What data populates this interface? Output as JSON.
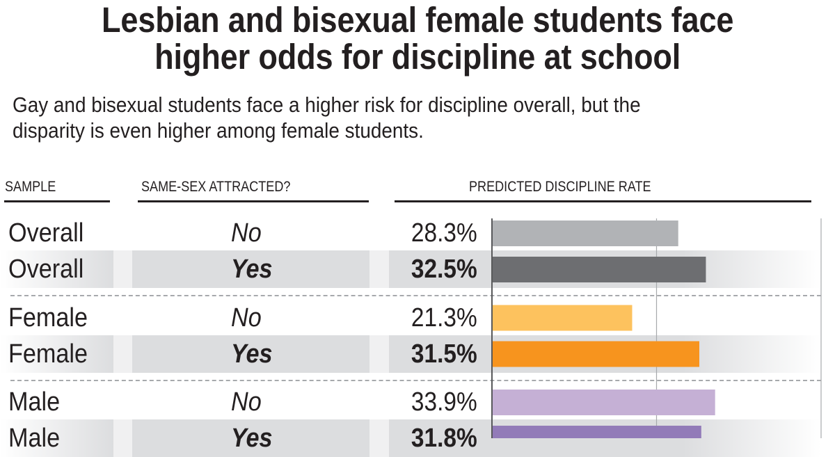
{
  "chart_data": {
    "type": "bar",
    "orientation": "horizontal",
    "title": "Lesbian and bisexual female students face higher odds for discipline at school",
    "title_lines": [
      "Lesbian and bisexual female students face",
      "higher odds for discipline at school"
    ],
    "subtitle_lines": [
      "Gay and bisexual students face a higher risk for discipline overall, but the",
      "disparity is even higher among female students."
    ],
    "columns": {
      "sample": "SAMPLE",
      "attracted": "SAME-SEX ATTRACTED?",
      "rate": "PREDICTED DISCIPLINE RATE"
    },
    "xlim": [
      0,
      50
    ],
    "gridlines": [
      25,
      50
    ],
    "unit": "%",
    "rows": [
      {
        "sample": "Overall",
        "attracted": "No",
        "value": 28.3,
        "label": "28.3%",
        "color": "#b1b3b6"
      },
      {
        "sample": "Overall",
        "attracted": "Yes",
        "value": 32.5,
        "label": "32.5%",
        "color": "#6d6e71"
      },
      {
        "sample": "Female",
        "attracted": "No",
        "value": 21.3,
        "label": "21.3%",
        "color": "#fdc25e"
      },
      {
        "sample": "Female",
        "attracted": "Yes",
        "value": 31.5,
        "label": "31.5%",
        "color": "#f7941e"
      },
      {
        "sample": "Male",
        "attracted": "No",
        "value": 33.9,
        "label": "33.9%",
        "color": "#c5b0d5"
      },
      {
        "sample": "Male",
        "attracted": "Yes",
        "value": 31.8,
        "label": "31.8%",
        "color": "#927bb8"
      }
    ]
  }
}
